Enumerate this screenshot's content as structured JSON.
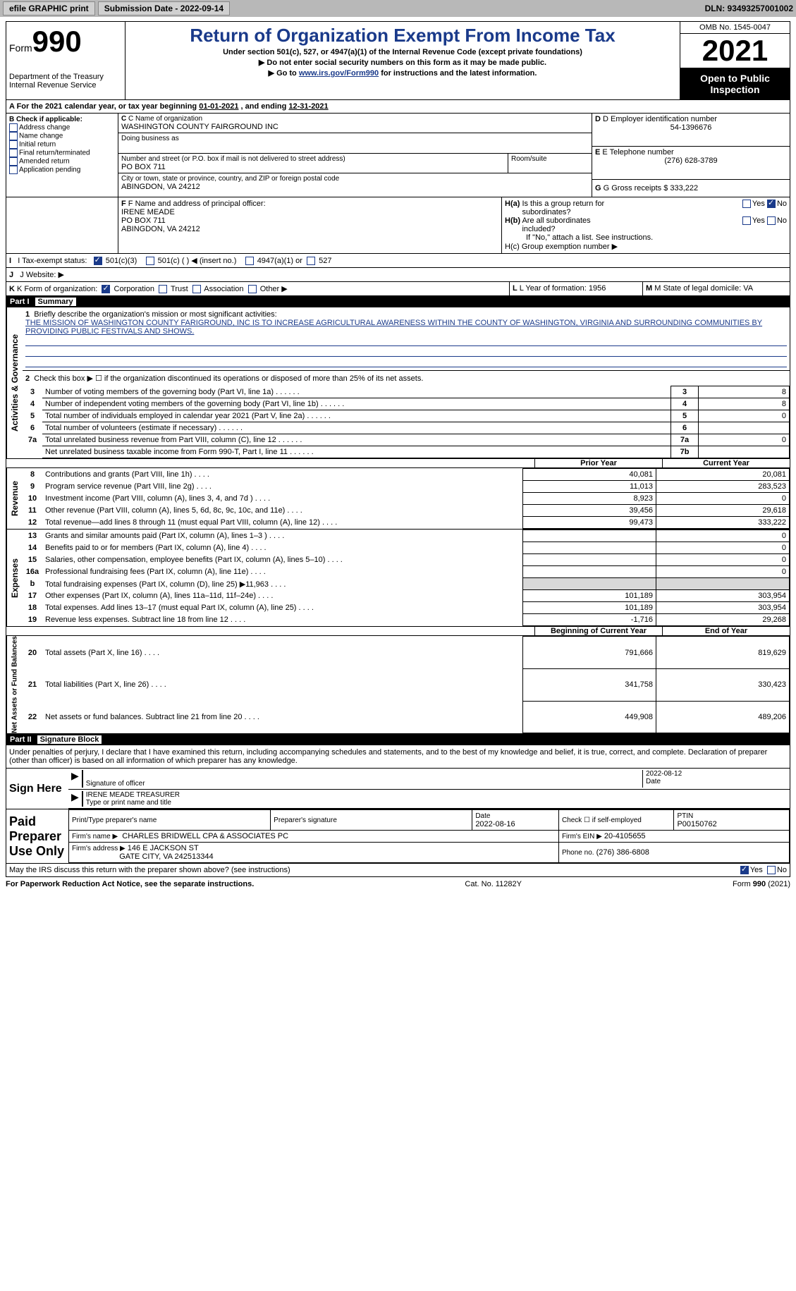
{
  "toolbar": {
    "efile_label": "efile GRAPHIC print",
    "submission_label": "Submission Date - 2022-09-14",
    "dln_label": "DLN: 93493257001002"
  },
  "header": {
    "form_prefix": "Form",
    "form_number": "990",
    "title": "Return of Organization Exempt From Income Tax",
    "subtitle1": "Under section 501(c), 527, or 4947(a)(1) of the Internal Revenue Code (except private foundations)",
    "subtitle2": "▶ Do not enter social security numbers on this form as it may be made public.",
    "subtitle3_prefix": "▶ Go to ",
    "subtitle3_link": "www.irs.gov/Form990",
    "subtitle3_suffix": " for instructions and the latest information.",
    "dept": "Department of the Treasury",
    "irs": "Internal Revenue Service",
    "omb": "OMB No. 1545-0047",
    "year": "2021",
    "inspection": "Open to Public Inspection"
  },
  "sectionA": {
    "label": "A For the 2021 calendar year, or tax year beginning ",
    "begin": "01-01-2021",
    "mid": " , and ending ",
    "end": "12-31-2021"
  },
  "sectionB": {
    "title": "B Check if applicable:",
    "items": [
      "Address change",
      "Name change",
      "Initial return",
      "Final return/terminated",
      "Amended return",
      "Application pending"
    ]
  },
  "sectionC": {
    "name_label": "C Name of organization",
    "name": "WASHINGTON COUNTY FAIRGROUND INC",
    "dba_label": "Doing business as",
    "street_label": "Number and street (or P.O. box if mail is not delivered to street address)",
    "street": "PO BOX 711",
    "room_label": "Room/suite",
    "city_label": "City or town, state or province, country, and ZIP or foreign postal code",
    "city": "ABINGDON, VA  24212"
  },
  "sectionD": {
    "ein_label": "D Employer identification number",
    "ein": "54-1396676",
    "tel_label": "E Telephone number",
    "tel": "(276) 628-3789",
    "gross_label": "G Gross receipts $",
    "gross": "333,222"
  },
  "sectionF": {
    "label": "F Name and address of principal officer:",
    "name": "IRENE MEADE",
    "addr1": "PO BOX 711",
    "addr2": "ABINGDON, VA  24212"
  },
  "sectionH": {
    "ha_label": "H(a) Is this a group return for subordinates?",
    "hb_label": "H(b) Are all subordinates included?",
    "hb_note": "If \"No,\" attach a list. See instructions.",
    "hc_label": "H(c) Group exemption number ▶",
    "yes": "Yes",
    "no": "No"
  },
  "sectionI": {
    "label": "I Tax-exempt status:",
    "opt1": "501(c)(3)",
    "opt2": "501(c) (   ) ◀ (insert no.)",
    "opt3": "4947(a)(1) or",
    "opt4": "527"
  },
  "sectionJ": {
    "label": "J  Website: ▶"
  },
  "sectionK": {
    "label": "K Form of organization:",
    "opts": [
      "Corporation",
      "Trust",
      "Association",
      "Other ▶"
    ]
  },
  "sectionL": {
    "label": "L Year of formation:",
    "value": "1956"
  },
  "sectionM": {
    "label": "M State of legal domicile:",
    "value": "VA"
  },
  "part1": {
    "label": "Part I",
    "title": "Summary",
    "vtext_ag": "Activities & Governance",
    "vtext_rev": "Revenue",
    "vtext_exp": "Expenses",
    "vtext_na": "Net Assets or Fund Balances",
    "line1_label": "Briefly describe the organization's mission or most significant activities:",
    "mission": "THE MISSION OF WASHINGTON COUNTY FARIGROUND, INC IS TO INCREASE AGRICULTURAL AWARENESS WITHIN THE COUNTY OF WASHINGTON, VIRGINIA AND SURROUNDING COMMUNITIES BY PROVIDING PUBLIC FESTIVALS AND SHOWS.",
    "line2": "Check this box ▶ ☐ if the organization discontinued its operations or disposed of more than 25% of its net assets.",
    "lines": [
      {
        "n": "3",
        "desc": "Number of voting members of the governing body (Part VI, line 1a)",
        "box": "3",
        "val": "8"
      },
      {
        "n": "4",
        "desc": "Number of independent voting members of the governing body (Part VI, line 1b)",
        "box": "4",
        "val": "8"
      },
      {
        "n": "5",
        "desc": "Total number of individuals employed in calendar year 2021 (Part V, line 2a)",
        "box": "5",
        "val": "0"
      },
      {
        "n": "6",
        "desc": "Total number of volunteers (estimate if necessary)",
        "box": "6",
        "val": ""
      },
      {
        "n": "7a",
        "desc": "Total unrelated business revenue from Part VIII, column (C), line 12",
        "box": "7a",
        "val": "0"
      },
      {
        "n": "",
        "desc": "Net unrelated business taxable income from Form 990-T, Part I, line 11",
        "box": "7b",
        "val": ""
      }
    ],
    "col_prior": "Prior Year",
    "col_current": "Current Year",
    "rev_lines": [
      {
        "n": "8",
        "desc": "Contributions and grants (Part VIII, line 1h)",
        "prior": "40,081",
        "curr": "20,081"
      },
      {
        "n": "9",
        "desc": "Program service revenue (Part VIII, line 2g)",
        "prior": "11,013",
        "curr": "283,523"
      },
      {
        "n": "10",
        "desc": "Investment income (Part VIII, column (A), lines 3, 4, and 7d )",
        "prior": "8,923",
        "curr": "0"
      },
      {
        "n": "11",
        "desc": "Other revenue (Part VIII, column (A), lines 5, 6d, 8c, 9c, 10c, and 11e)",
        "prior": "39,456",
        "curr": "29,618"
      },
      {
        "n": "12",
        "desc": "Total revenue—add lines 8 through 11 (must equal Part VIII, column (A), line 12)",
        "prior": "99,473",
        "curr": "333,222"
      }
    ],
    "exp_lines": [
      {
        "n": "13",
        "desc": "Grants and similar amounts paid (Part IX, column (A), lines 1–3 )",
        "prior": "",
        "curr": "0"
      },
      {
        "n": "14",
        "desc": "Benefits paid to or for members (Part IX, column (A), line 4)",
        "prior": "",
        "curr": "0"
      },
      {
        "n": "15",
        "desc": "Salaries, other compensation, employee benefits (Part IX, column (A), lines 5–10)",
        "prior": "",
        "curr": "0"
      },
      {
        "n": "16a",
        "desc": "Professional fundraising fees (Part IX, column (A), line 11e)",
        "prior": "",
        "curr": "0"
      },
      {
        "n": "b",
        "desc": "Total fundraising expenses (Part IX, column (D), line 25) ▶11,963",
        "prior": "shaded",
        "curr": "shaded"
      },
      {
        "n": "17",
        "desc": "Other expenses (Part IX, column (A), lines 11a–11d, 11f–24e)",
        "prior": "101,189",
        "curr": "303,954"
      },
      {
        "n": "18",
        "desc": "Total expenses. Add lines 13–17 (must equal Part IX, column (A), line 25)",
        "prior": "101,189",
        "curr": "303,954"
      },
      {
        "n": "19",
        "desc": "Revenue less expenses. Subtract line 18 from line 12",
        "prior": "-1,716",
        "curr": "29,268"
      }
    ],
    "col_begin": "Beginning of Current Year",
    "col_end": "End of Year",
    "na_lines": [
      {
        "n": "20",
        "desc": "Total assets (Part X, line 16)",
        "prior": "791,666",
        "curr": "819,629"
      },
      {
        "n": "21",
        "desc": "Total liabilities (Part X, line 26)",
        "prior": "341,758",
        "curr": "330,423"
      },
      {
        "n": "22",
        "desc": "Net assets or fund balances. Subtract line 21 from line 20",
        "prior": "449,908",
        "curr": "489,206"
      }
    ]
  },
  "part2": {
    "label": "Part II",
    "title": "Signature Block",
    "penalty": "Under penalties of perjury, I declare that I have examined this return, including accompanying schedules and statements, and to the best of my knowledge and belief, it is true, correct, and complete. Declaration of preparer (other than officer) is based on all information of which preparer has any knowledge.",
    "sign_here": "Sign Here",
    "sig_officer": "Signature of officer",
    "sig_date_label": "Date",
    "sig_date": "2022-08-12",
    "officer_name": "IRENE MEADE  TREASURER",
    "type_name": "Type or print name and title",
    "paid_prep": "Paid Preparer Use Only",
    "prep_name_label": "Print/Type preparer's name",
    "prep_sig_label": "Preparer's signature",
    "prep_date_label": "Date",
    "prep_date": "2022-08-16",
    "check_self": "Check ☐ if self-employed",
    "ptin_label": "PTIN",
    "ptin": "P00150762",
    "firm_name_label": "Firm's name    ▶",
    "firm_name": "CHARLES BRIDWELL CPA & ASSOCIATES PC",
    "firm_ein_label": "Firm's EIN ▶",
    "firm_ein": "20-4105655",
    "firm_addr_label": "Firm's address ▶",
    "firm_addr1": "146 E JACKSON ST",
    "firm_addr2": "GATE CITY, VA  242513344",
    "firm_phone_label": "Phone no.",
    "firm_phone": "(276) 386-6808",
    "may_irs": "May the IRS discuss this return with the preparer shown above? (see instructions)"
  },
  "footer": {
    "paperwork": "For Paperwork Reduction Act Notice, see the separate instructions.",
    "catno": "Cat. No. 11282Y",
    "formref": "Form 990 (2021)"
  }
}
